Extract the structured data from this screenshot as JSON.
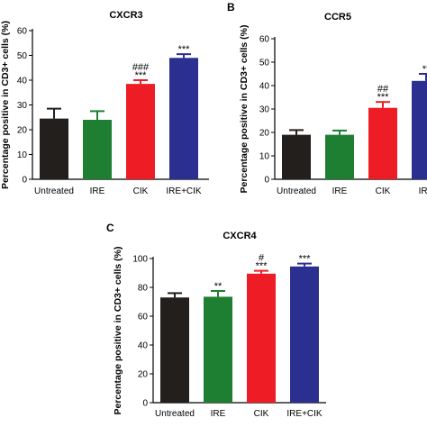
{
  "chart_data": [
    {
      "type": "bar",
      "panel": "",
      "title": "CXCR3",
      "ylabel": "Percentage positive in CD3+ cells (%)",
      "ylim": [
        0,
        60
      ],
      "yticks": [
        0,
        10,
        20,
        30,
        40,
        50,
        60
      ],
      "categories": [
        "Untreated",
        "IRE",
        "CIK",
        "IRE+CIK"
      ],
      "values": [
        24.5,
        24,
        38.5,
        49
      ],
      "errors": [
        4,
        3.5,
        1.5,
        1.5
      ],
      "annotations": [
        [
          "",
          ""
        ],
        [
          "",
          ""
        ],
        [
          "###",
          "***"
        ],
        [
          "",
          "***"
        ]
      ],
      "colors": [
        "#231f1c",
        "#1e7f33",
        "#ee1c25",
        "#2b2f8f"
      ]
    },
    {
      "type": "bar",
      "panel": "B",
      "title": "CCR5",
      "ylabel": "Percentage positive in CD3+ cells (%)",
      "ylim": [
        0,
        60
      ],
      "yticks": [
        0,
        10,
        20,
        30,
        40,
        50,
        60
      ],
      "categories": [
        "Untreated",
        "IRE",
        "CIK",
        "IRE"
      ],
      "values": [
        19,
        19,
        30.5,
        42
      ],
      "errors": [
        2,
        1.8,
        2.5,
        3
      ],
      "annotations": [
        [
          "",
          ""
        ],
        [
          "",
          ""
        ],
        [
          "##",
          "***"
        ],
        [
          "",
          "**"
        ]
      ],
      "colors": [
        "#231f1c",
        "#1e7f33",
        "#ee1c25",
        "#2b2f8f"
      ]
    },
    {
      "type": "bar",
      "panel": "C",
      "title": "CXCR4",
      "ylabel": "Percentage positive in CD3+ cells (%)",
      "ylim": [
        0,
        100
      ],
      "yticks": [
        0,
        20,
        40,
        60,
        80,
        100
      ],
      "categories": [
        "Untreated",
        "IRE",
        "CIK",
        "IRE+CIK"
      ],
      "values": [
        73,
        73.5,
        89.5,
        94.5
      ],
      "errors": [
        3,
        4,
        2,
        2
      ],
      "annotations": [
        [
          "",
          ""
        ],
        [
          "",
          "**"
        ],
        [
          "#",
          "***"
        ],
        [
          "",
          "***"
        ]
      ],
      "colors": [
        "#231f1c",
        "#1e7f33",
        "#ee1c25",
        "#2b2f8f"
      ]
    }
  ]
}
